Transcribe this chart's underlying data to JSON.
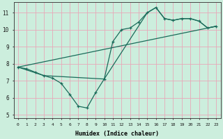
{
  "xlabel": "Humidex (Indice chaleur)",
  "bg_color": "#cceedd",
  "grid_color": "#e8a8b8",
  "line_color": "#1a6b5a",
  "xlim": [
    -0.5,
    23.5
  ],
  "ylim": [
    4.8,
    11.6
  ],
  "yticks": [
    5,
    6,
    7,
    8,
    9,
    10,
    11
  ],
  "xticks": [
    0,
    1,
    2,
    3,
    4,
    5,
    6,
    7,
    8,
    9,
    10,
    11,
    12,
    13,
    14,
    15,
    16,
    17,
    18,
    19,
    20,
    21,
    22,
    23
  ],
  "line1_x": [
    0,
    1,
    2,
    3,
    4,
    5,
    6,
    7,
    8,
    9,
    10,
    11,
    12,
    13,
    14,
    15,
    16,
    17,
    18,
    19,
    20,
    21,
    22,
    23
  ],
  "line1_y": [
    7.8,
    7.7,
    7.5,
    7.3,
    7.15,
    6.85,
    6.2,
    5.5,
    5.4,
    6.3,
    7.1,
    9.3,
    10.0,
    10.1,
    10.45,
    11.0,
    11.3,
    10.65,
    10.55,
    10.65,
    10.65,
    10.5,
    10.1,
    10.2
  ],
  "line2_x": [
    0,
    23
  ],
  "line2_y": [
    7.8,
    10.2
  ],
  "line3_x": [
    0,
    3,
    10,
    15,
    16,
    17,
    18,
    19,
    20,
    21,
    22,
    23
  ],
  "line3_y": [
    7.8,
    7.3,
    7.1,
    11.0,
    11.3,
    10.65,
    10.55,
    10.65,
    10.65,
    10.5,
    10.1,
    10.2
  ]
}
